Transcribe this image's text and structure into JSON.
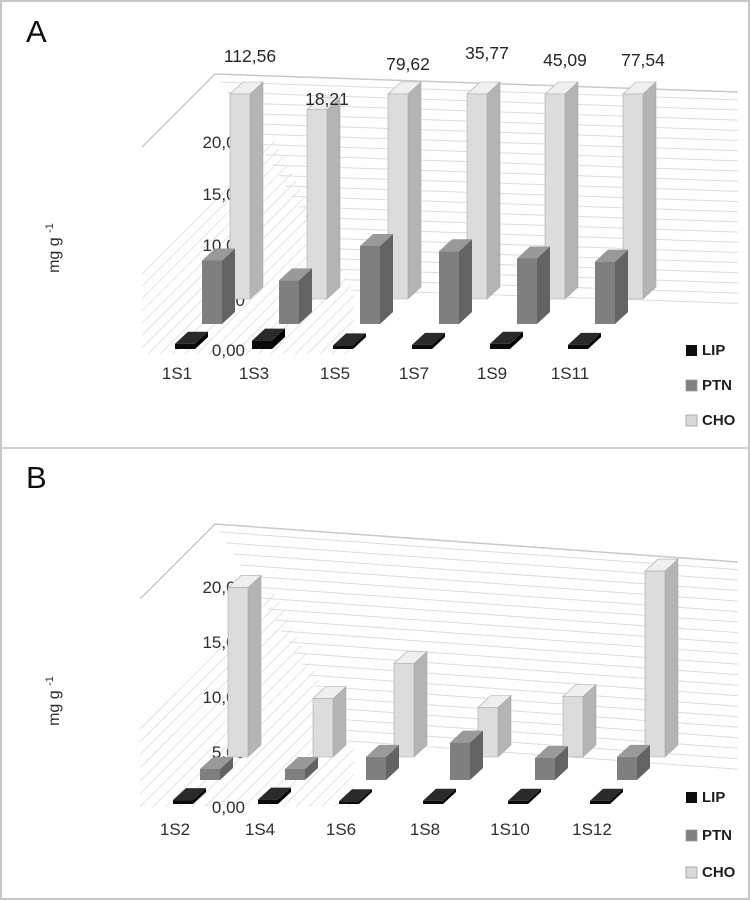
{
  "panels": [
    {
      "letter": "A"
    },
    {
      "letter": "B"
    }
  ],
  "legend": {
    "items": [
      {
        "label": "LIP",
        "color": "#0d0d0d"
      },
      {
        "label": "PTN",
        "color": "#808080"
      },
      {
        "label": "CHO",
        "color": "#d9d9d9"
      }
    ]
  },
  "colors": {
    "lip": {
      "front": "#0b0b0b",
      "top": "#2a2a2a",
      "side": "#000000"
    },
    "ptn": {
      "front": "#7f7f7f",
      "top": "#999999",
      "side": "#636363"
    },
    "cho": {
      "front": "#dcdcdc",
      "top": "#efefef",
      "side": "#b4b4b4"
    },
    "gridline": "#dcdcdc",
    "wall_edge": "#c9c9c9",
    "hatch": "#e3e3e3",
    "tick_text": "#2e2e2e",
    "label_text": "#262626"
  },
  "chart_data": [
    {
      "type": "bar",
      "variant": "3d-column",
      "panel": "A",
      "ylabel_main": "mg g",
      "ylabel_sup": "-1",
      "yticks_top_down": [
        "20,00",
        "15,00",
        "10,00",
        "5,00",
        "0,00"
      ],
      "ylim": [
        0,
        20
      ],
      "grid": true,
      "legend_position": "bottom-right",
      "categories": [
        "1S1",
        "1S3",
        "1S5",
        "1S7",
        "1S9",
        "1S11"
      ],
      "series": [
        {
          "name": "LIP",
          "values": [
            0.5,
            0.8,
            0.35,
            0.4,
            0.5,
            0.4
          ]
        },
        {
          "name": "PTN",
          "values": [
            6.1,
            4.2,
            7.5,
            7.0,
            6.3,
            6.0
          ]
        },
        {
          "name": "CHO",
          "values": [
            112.56,
            18.21,
            79.62,
            35.77,
            45.09,
            77.54
          ]
        }
      ],
      "data_labels": {
        "series": "CHO",
        "texts": [
          "112,56",
          "18,21",
          "79,62",
          "35,77",
          "45,09",
          "77,54"
        ]
      }
    },
    {
      "type": "bar",
      "variant": "3d-column",
      "panel": "B",
      "ylabel_main": "mg g",
      "ylabel_sup": "-1",
      "yticks_top_down": [
        "20,00",
        "15,00",
        "10,00",
        "5,00",
        "0,00"
      ],
      "ylim": [
        0,
        20
      ],
      "grid": true,
      "legend_position": "bottom-right",
      "categories": [
        "1S2",
        "1S4",
        "1S6",
        "1S8",
        "1S10",
        "1S12"
      ],
      "series": [
        {
          "name": "LIP",
          "values": [
            0.35,
            0.4,
            0.25,
            0.3,
            0.3,
            0.3
          ]
        },
        {
          "name": "PTN",
          "values": [
            1.0,
            1.0,
            2.1,
            3.4,
            2.0,
            2.1
          ]
        },
        {
          "name": "CHO",
          "values": [
            15.4,
            5.3,
            8.5,
            4.5,
            5.5,
            16.9
          ]
        }
      ],
      "data_labels": null
    }
  ]
}
